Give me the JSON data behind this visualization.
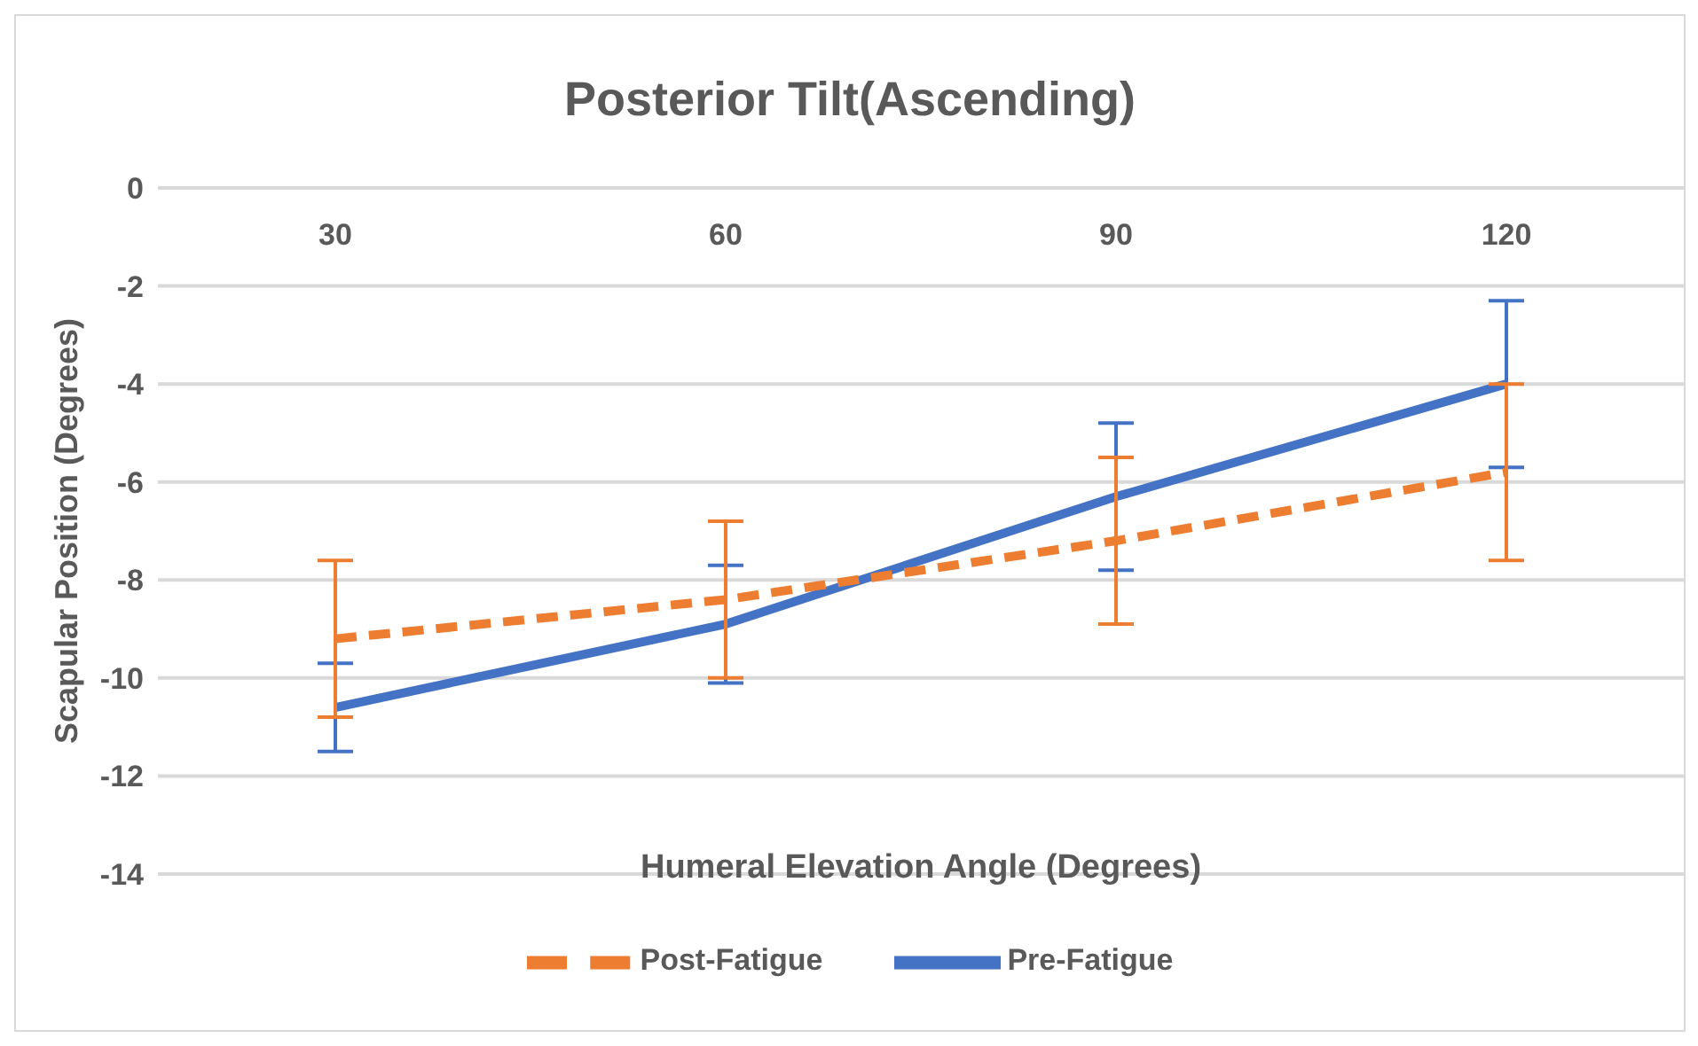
{
  "chart_data": {
    "type": "line",
    "title": "Posterior Tilt(Ascending)",
    "xlabel": "Humeral Elevation Angle (Degrees)",
    "ylabel": "Scapular Position (Degrees)",
    "categories": [
      "30",
      "60",
      "90",
      "120"
    ],
    "series": [
      {
        "name": "Pre-Fatigue",
        "color": "#4472c4",
        "values": [
          -10.6,
          -8.9,
          -6.3,
          -4.0
        ],
        "errors": [
          0.9,
          1.2,
          1.5,
          1.7
        ],
        "line_style": "solid"
      },
      {
        "name": "Post-Fatigue",
        "color": "#ed7d31",
        "values": [
          -9.2,
          -8.4,
          -7.2,
          -5.8
        ],
        "errors": [
          1.6,
          1.6,
          1.7,
          1.8
        ],
        "line_style": "dashed"
      }
    ],
    "ylim": [
      -14,
      0
    ],
    "yticks": [
      -14,
      -12,
      -10,
      -8,
      -6,
      -4,
      -2,
      0
    ],
    "grid": "y",
    "legend": "bottom",
    "marker": "none"
  }
}
